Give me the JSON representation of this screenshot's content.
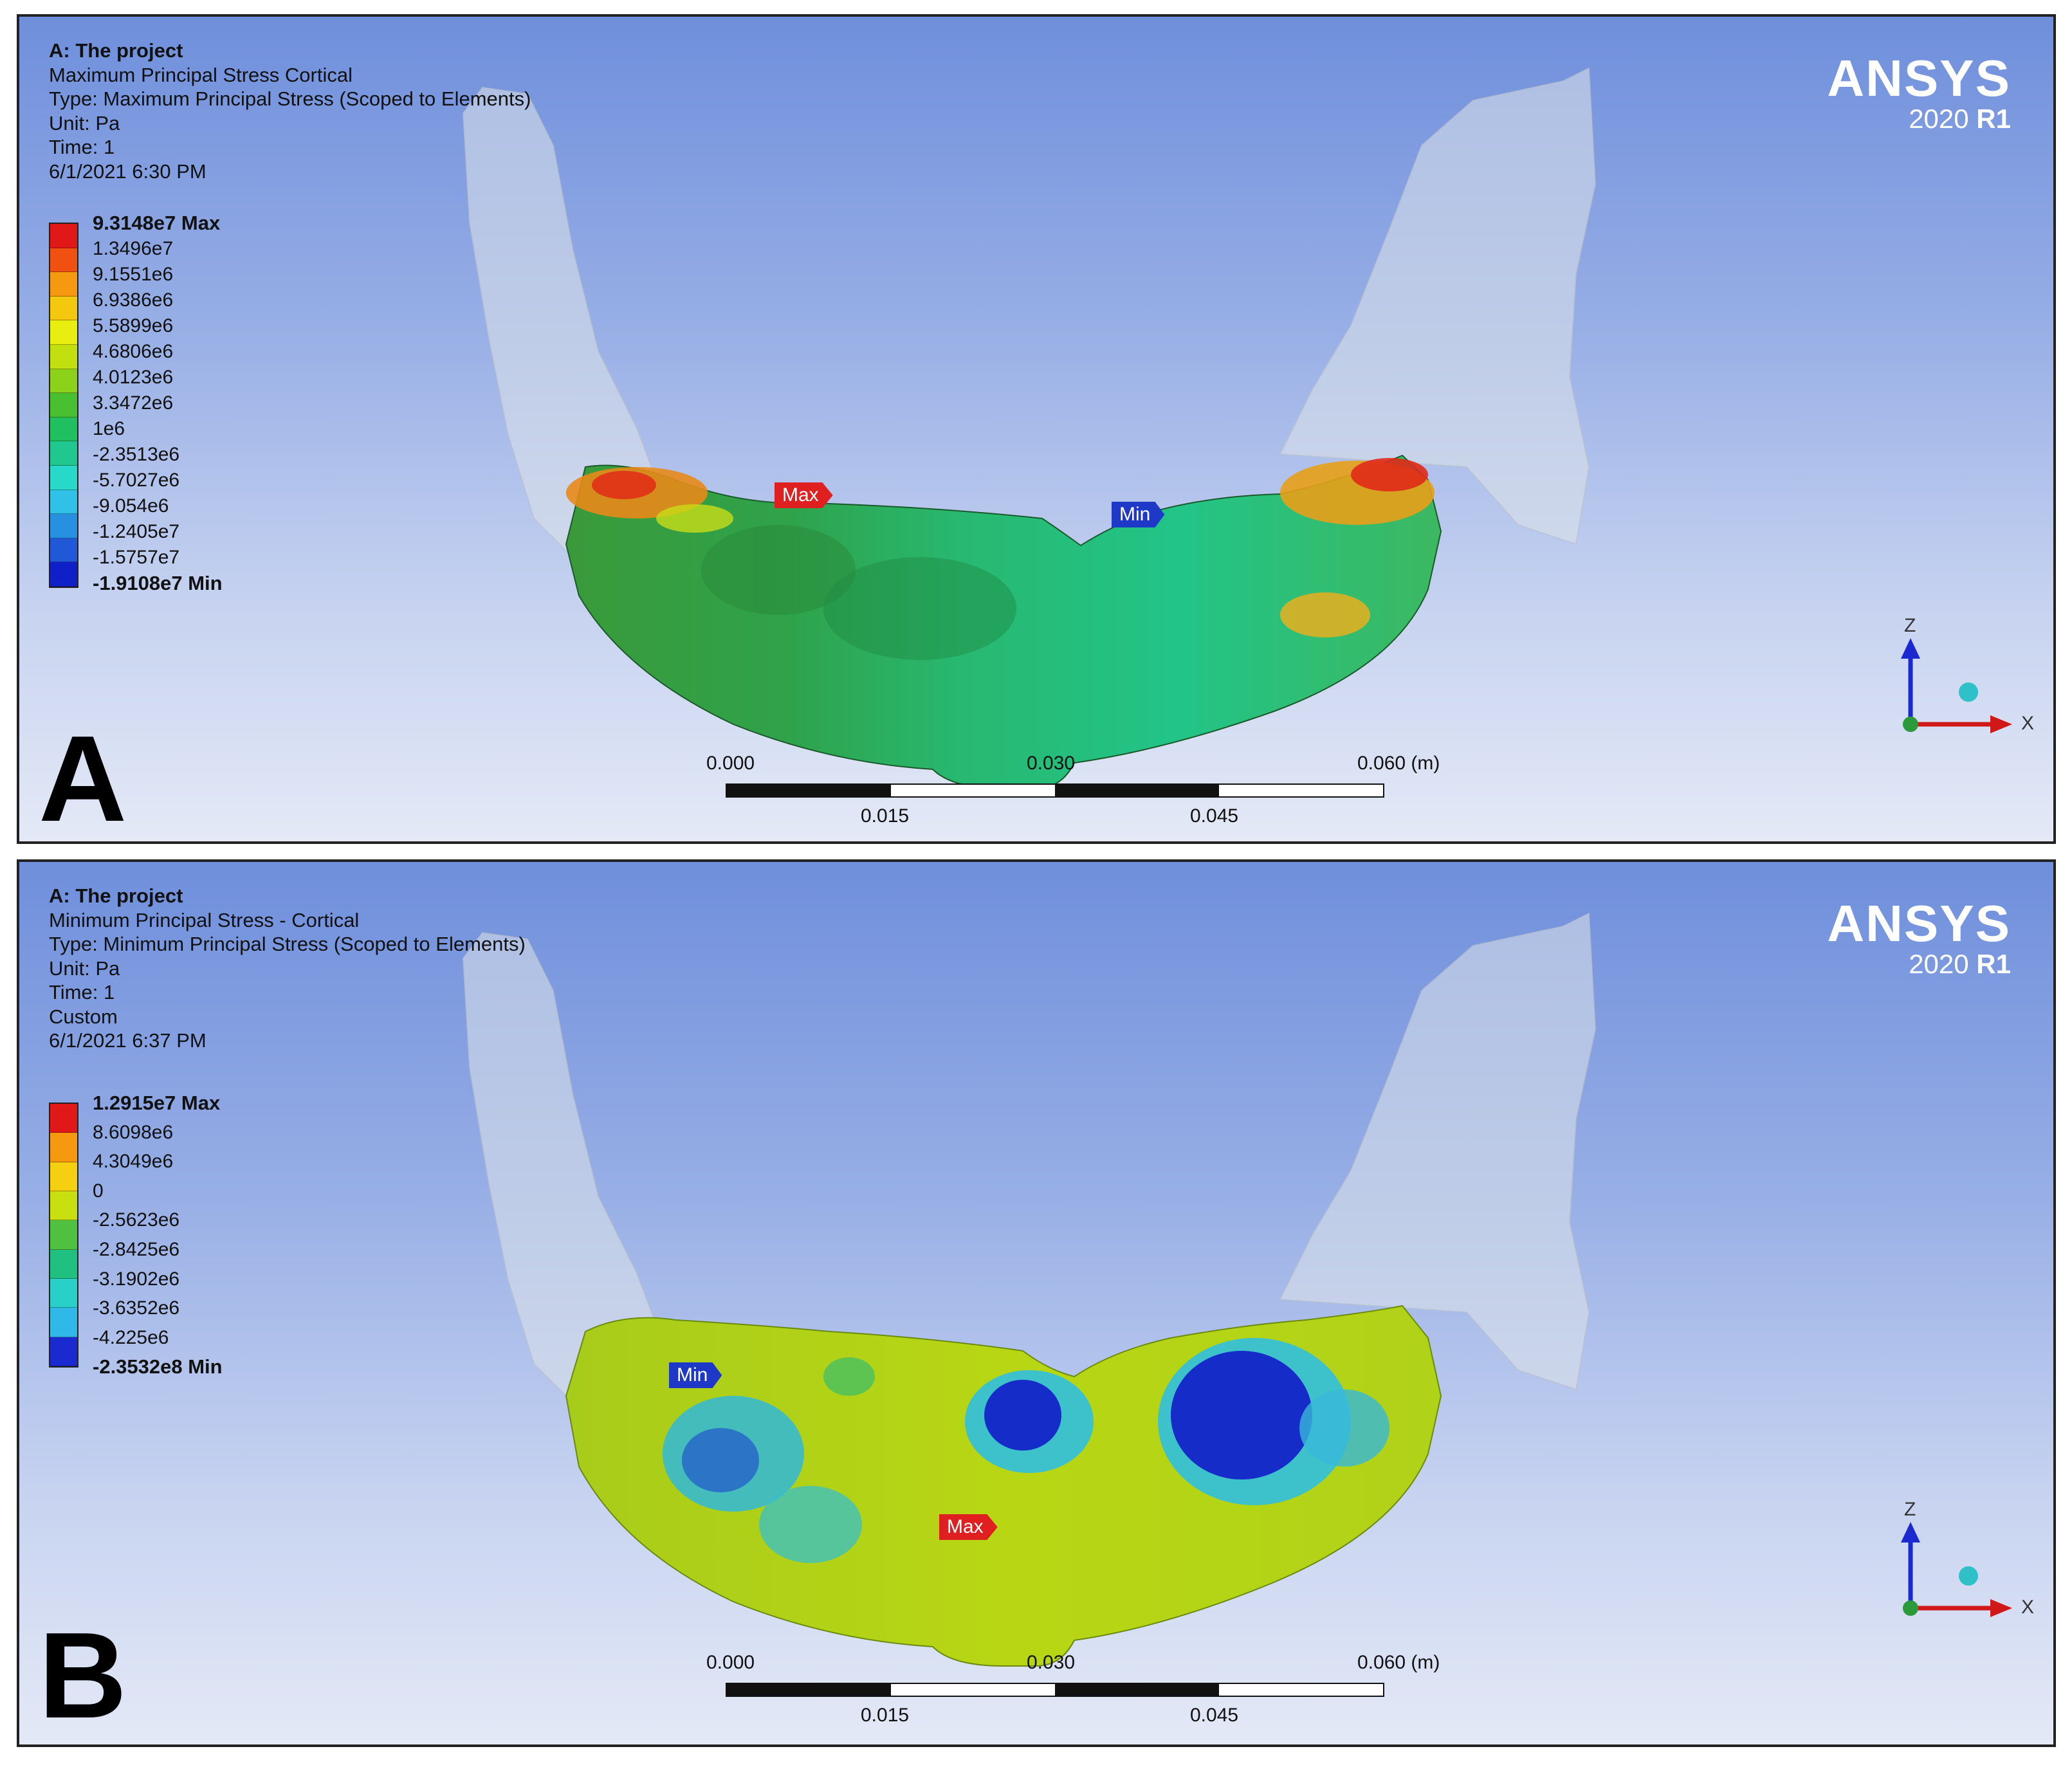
{
  "panels": [
    {
      "letter": "A",
      "info": {
        "project": "A: The project",
        "result_name": "Maximum Principal Stress Cortical",
        "type": "Type: Maximum Principal Stress (Scoped to Elements)",
        "unit": "Unit: Pa",
        "time": "Time: 1",
        "timestamp": "6/1/2021 6:30 PM"
      },
      "legend": {
        "labels": [
          "9.3148e7 Max",
          "1.3496e7",
          "9.1551e6",
          "6.9386e6",
          "5.5899e6",
          "4.6806e6",
          "4.0123e6",
          "3.3472e6",
          "1e6",
          "-2.3513e6",
          "-5.7027e6",
          "-9.054e6",
          "-1.2405e7",
          "-1.5757e7",
          "-1.9108e7 Min"
        ],
        "colors": [
          "#e01818",
          "#f05010",
          "#f59a10",
          "#f5c810",
          "#e8ee10",
          "#c2e010",
          "#8cd21a",
          "#48c032",
          "#20c060",
          "#20c890",
          "#28d8c8",
          "#30c0e8",
          "#2890e0",
          "#2058d8",
          "#1020c8"
        ]
      },
      "probes": {
        "max_label": "Max",
        "min_label": "Min"
      },
      "logo": {
        "brand": "ANSYS",
        "version_year": "2020",
        "version_rel": "R1"
      },
      "scale": {
        "left": "0.000",
        "mid": "0.030",
        "right": "0.060 (m)",
        "q1": "0.015",
        "q3": "0.045"
      },
      "triad": {
        "z": "Z",
        "x": "X"
      }
    },
    {
      "letter": "B",
      "info": {
        "project": "A: The project",
        "result_name": "Minimum Principal Stress - Cortical",
        "type": "Type: Minimum Principal Stress (Scoped to Elements)",
        "unit": "Unit: Pa",
        "time": "Time: 1",
        "custom": "Custom",
        "timestamp": "6/1/2021 6:37 PM"
      },
      "legend": {
        "labels": [
          "1.2915e7 Max",
          "8.6098e6",
          "4.3049e6",
          "0",
          "-2.5623e6",
          "-2.8425e6",
          "-3.1902e6",
          "-3.6352e6",
          "-4.225e6",
          "-2.3532e8 Min"
        ],
        "colors": [
          "#e01818",
          "#f59a10",
          "#f5d010",
          "#c8e010",
          "#50c040",
          "#20c080",
          "#28d0c8",
          "#30b8e8",
          "#1a2ad0"
        ]
      },
      "probes": {
        "max_label": "Max",
        "min_label": "Min"
      },
      "logo": {
        "brand": "ANSYS",
        "version_year": "2020",
        "version_rel": "R1"
      },
      "scale": {
        "left": "0.000",
        "mid": "0.030",
        "right": "0.060 (m)",
        "q1": "0.015",
        "q3": "0.045"
      },
      "triad": {
        "z": "Z",
        "x": "X"
      }
    }
  ]
}
